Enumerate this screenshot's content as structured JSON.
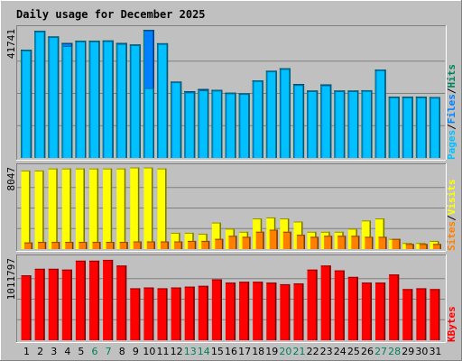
{
  "chart_data": {
    "type": "bar",
    "title": "Daily usage for December 2025",
    "categories": [
      "1",
      "2",
      "3",
      "4",
      "5",
      "6",
      "7",
      "8",
      "9",
      "10",
      "11",
      "12",
      "13",
      "14",
      "15",
      "16",
      "17",
      "18",
      "19",
      "20",
      "21",
      "22",
      "23",
      "24",
      "25",
      "26",
      "27",
      "28",
      "29",
      "30",
      "31"
    ],
    "weekend_days": [
      "6",
      "7",
      "13",
      "14",
      "20",
      "21",
      "27",
      "28"
    ],
    "colors": {
      "title": "#0000ff",
      "tick_weekday": "#000000",
      "tick_weekend": "#00805c",
      "pages": "#00c0ff",
      "files": "#0080ff",
      "hits": "#00805c",
      "sites": "#ff8000",
      "visits": "#ffff00",
      "kbytes": "#ff0000",
      "background": "#c0c0c0",
      "panel": "#c0c0c0",
      "gridline": "#808080"
    },
    "panels": [
      {
        "name": "hits-files-pages",
        "max_label": "41741",
        "ymax": 41741,
        "legend": [
          "Pages",
          "/",
          "Files",
          "/",
          "Hits"
        ],
        "series": [
          {
            "name": "Hits",
            "values": [
              35000,
              41100,
              39300,
              37200,
              37900,
              37900,
              38000,
              37200,
              36700,
              41400,
              37100,
              24700,
              21600,
              22300,
              22000,
              21100,
              20900,
              25100,
              28200,
              29000,
              23900,
              21800,
              23800,
              21800,
              21800,
              21900,
              28600,
              19800,
              19800,
              19800,
              19700
            ]
          },
          {
            "name": "Files",
            "values": [
              34900,
              41000,
              39200,
              37100,
              37800,
              37800,
              37900,
              37100,
              36600,
              41300,
              37000,
              24600,
              21500,
              22200,
              21900,
              21000,
              20800,
              25000,
              28100,
              28900,
              23800,
              21700,
              23700,
              21700,
              21700,
              21800,
              28500,
              19700,
              19700,
              19700,
              19600
            ]
          },
          {
            "name": "Pages",
            "values": [
              34800,
              40900,
              39100,
              36200,
              37700,
              37700,
              37800,
              36900,
              36500,
              22600,
              36900,
              24500,
              21200,
              21900,
              21800,
              20900,
              20700,
              24900,
              28000,
              28800,
              23600,
              21600,
              23500,
              21600,
              21600,
              21700,
              28400,
              19600,
              19600,
              19600,
              19500
            ]
          }
        ]
      },
      {
        "name": "visits-sites",
        "max_label": "8047",
        "ymax": 8047,
        "legend": [
          "Sites",
          "/",
          "Visits"
        ],
        "series": [
          {
            "name": "Visits",
            "values": [
              7700,
              7700,
              7900,
              7900,
              7900,
              7900,
              7900,
              7900,
              8000,
              8000,
              7900,
              1600,
              1600,
              1500,
              2600,
              2000,
              1700,
              3000,
              3100,
              3000,
              2700,
              1700,
              1700,
              1700,
              2000,
              2800,
              3000,
              1000,
              600,
              600,
              800
            ]
          },
          {
            "name": "Sites",
            "values": [
              650,
              700,
              700,
              700,
              700,
              700,
              700,
              700,
              750,
              750,
              750,
              750,
              800,
              800,
              1000,
              1300,
              1200,
              1700,
              1900,
              1700,
              1400,
              1200,
              1300,
              1300,
              1300,
              1200,
              1200,
              1000,
              500,
              500,
              500
            ]
          }
        ]
      },
      {
        "name": "kbytes",
        "max_label": "1011797",
        "ymax": 1011797,
        "legend": [
          "KBytes"
        ],
        "series": [
          {
            "name": "KBytes",
            "values": [
              800000,
              880000,
              880000,
              870000,
              980000,
              980000,
              990000,
              920000,
              640000,
              650000,
              640000,
              650000,
              660000,
              670000,
              750000,
              710000,
              720000,
              720000,
              710000,
              690000,
              700000,
              870000,
              920000,
              860000,
              780000,
              710000,
              710000,
              810000,
              630000,
              640000,
              630000
            ]
          }
        ]
      }
    ]
  }
}
